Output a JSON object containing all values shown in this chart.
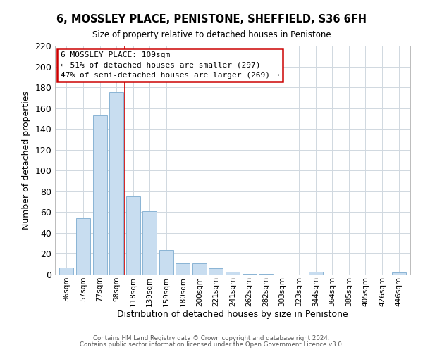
{
  "title": "6, MOSSLEY PLACE, PENISTONE, SHEFFIELD, S36 6FH",
  "subtitle": "Size of property relative to detached houses in Penistone",
  "xlabel": "Distribution of detached houses by size in Penistone",
  "ylabel": "Number of detached properties",
  "bar_color": "#c8ddf0",
  "bar_edge_color": "#8ab4d4",
  "categories": [
    "36sqm",
    "57sqm",
    "77sqm",
    "98sqm",
    "118sqm",
    "139sqm",
    "159sqm",
    "180sqm",
    "200sqm",
    "221sqm",
    "241sqm",
    "262sqm",
    "282sqm",
    "303sqm",
    "323sqm",
    "344sqm",
    "364sqm",
    "385sqm",
    "405sqm",
    "426sqm",
    "446sqm"
  ],
  "values": [
    7,
    54,
    153,
    175,
    75,
    61,
    24,
    11,
    11,
    6,
    3,
    1,
    1,
    0,
    0,
    3,
    0,
    0,
    0,
    0,
    2
  ],
  "ylim": [
    0,
    220
  ],
  "yticks": [
    0,
    20,
    40,
    60,
    80,
    100,
    120,
    140,
    160,
    180,
    200,
    220
  ],
  "annotation_text_line1": "6 MOSSLEY PLACE: 109sqm",
  "annotation_text_line2": "← 51% of detached houses are smaller (297)",
  "annotation_text_line3": "47% of semi-detached houses are larger (269) →",
  "footer_line1": "Contains HM Land Registry data © Crown copyright and database right 2024.",
  "footer_line2": "Contains public sector information licensed under the Open Government Licence v3.0.",
  "background_color": "#ffffff",
  "grid_color": "#d0d8e0",
  "vline_x": 3.5,
  "vline_color": "#cc0000",
  "annotation_box_color": "#cc0000"
}
